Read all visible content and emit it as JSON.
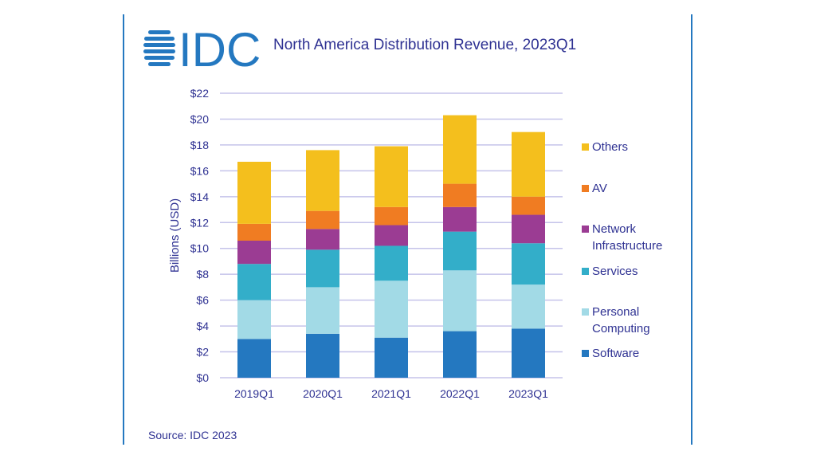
{
  "logo_text": "IDC",
  "source": "Source: IDC 2023",
  "colors": {
    "brand": "#2478c0",
    "text": "#2e3192",
    "grid": "#c5c3ea"
  },
  "chart_data": {
    "type": "bar",
    "stacked": true,
    "title": "North America Distribution Revenue, 2023Q1",
    "xlabel": "",
    "ylabel": "Billions (USD)",
    "ylim": [
      0,
      22
    ],
    "yticks": [
      "$0",
      "$2",
      "$4",
      "$6",
      "$8",
      "$10",
      "$12",
      "$14",
      "$16",
      "$18",
      "$20",
      "$22"
    ],
    "grid": true,
    "legend_position": "right",
    "categories": [
      "2019Q1",
      "2020Q1",
      "2021Q1",
      "2022Q1",
      "2023Q1"
    ],
    "series": [
      {
        "name": "Software",
        "color": "#2478c0",
        "values": [
          3.0,
          3.4,
          3.1,
          3.6,
          3.8
        ]
      },
      {
        "name": "Personal Computing",
        "color": "#a2dae6",
        "values": [
          3.0,
          3.6,
          4.4,
          4.7,
          3.4
        ]
      },
      {
        "name": "Services",
        "color": "#33aec9",
        "values": [
          2.8,
          2.9,
          2.7,
          3.0,
          3.2
        ]
      },
      {
        "name": "Network Infrastructure",
        "color": "#9b3c93",
        "values": [
          1.8,
          1.6,
          1.6,
          1.9,
          2.2
        ]
      },
      {
        "name": "AV",
        "color": "#f07c22",
        "values": [
          1.3,
          1.4,
          1.4,
          1.8,
          1.4
        ]
      },
      {
        "name": "Others",
        "color": "#f4bf1d",
        "values": [
          4.8,
          4.7,
          4.7,
          5.3,
          5.0
        ]
      }
    ],
    "legend": [
      {
        "label": "Others",
        "color": "#f4bf1d"
      },
      {
        "label": "AV",
        "color": "#f07c22"
      },
      {
        "label": "Network\nInfrastructure",
        "color": "#9b3c93"
      },
      {
        "label": "Services",
        "color": "#33aec9"
      },
      {
        "label": "Personal\nComputing",
        "color": "#a2dae6"
      },
      {
        "label": "Software",
        "color": "#2478c0"
      }
    ]
  }
}
